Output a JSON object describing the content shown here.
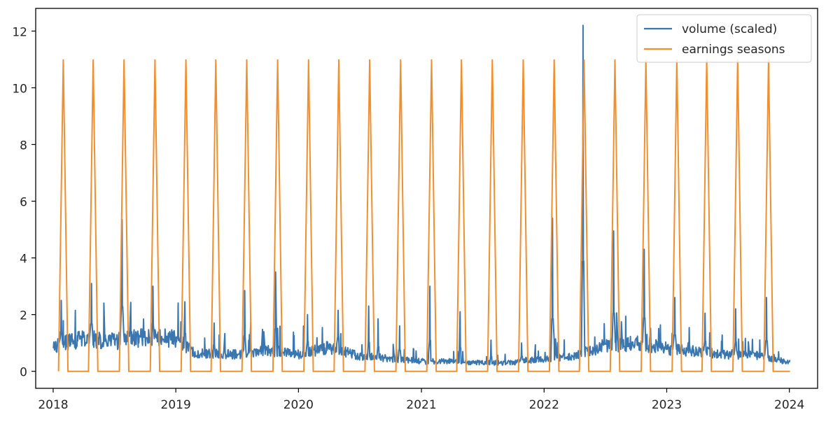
{
  "chart_data": {
    "type": "line",
    "title": "",
    "xlabel": "",
    "ylabel": "",
    "xlim": [
      "2017-11-10",
      "2024-03-25"
    ],
    "ylim": [
      -0.6,
      12.8
    ],
    "grid": false,
    "legend": {
      "position": "top-right"
    },
    "x_ticks": [
      "2018-01-01",
      "2019-01-01",
      "2020-01-01",
      "2021-01-01",
      "2022-01-01",
      "2023-01-01",
      "2024-01-01"
    ],
    "x_tick_labels": [
      "2018",
      "2019",
      "2020",
      "2021",
      "2022",
      "2023",
      "2024"
    ],
    "y_ticks": [
      0,
      2,
      4,
      6,
      8,
      10,
      12
    ],
    "y_tick_labels": [
      "0",
      "2",
      "4",
      "6",
      "8",
      "10",
      "12"
    ],
    "series": [
      {
        "name": "volume (scaled)",
        "color": "#3a76af",
        "baseline": [
          [
            "2018-01-01",
            0.9
          ],
          [
            "2018-04-01",
            1.15
          ],
          [
            "2018-07-01",
            1.05
          ],
          [
            "2018-10-01",
            1.2
          ],
          [
            "2019-01-01",
            1.15
          ],
          [
            "2019-03-01",
            0.65
          ],
          [
            "2019-07-01",
            0.6
          ],
          [
            "2019-10-01",
            0.75
          ],
          [
            "2020-01-01",
            0.6
          ],
          [
            "2020-04-01",
            0.85
          ],
          [
            "2020-07-01",
            0.55
          ],
          [
            "2020-10-01",
            0.45
          ],
          [
            "2021-01-01",
            0.35
          ],
          [
            "2021-04-01",
            0.35
          ],
          [
            "2021-07-01",
            0.3
          ],
          [
            "2021-10-01",
            0.3
          ],
          [
            "2022-01-01",
            0.45
          ],
          [
            "2022-04-01",
            0.55
          ],
          [
            "2022-07-01",
            0.9
          ],
          [
            "2022-10-01",
            1.0
          ],
          [
            "2023-01-01",
            0.8
          ],
          [
            "2023-04-01",
            0.7
          ],
          [
            "2023-07-01",
            0.6
          ],
          [
            "2023-10-01",
            0.55
          ],
          [
            "2024-01-03",
            0.3
          ]
        ],
        "spikes": [
          [
            "2018-01-25",
            2.5
          ],
          [
            "2018-04-25",
            3.1
          ],
          [
            "2018-07-25",
            5.35
          ],
          [
            "2018-10-25",
            3.0
          ],
          [
            "2019-01-28",
            2.45
          ],
          [
            "2019-04-25",
            1.7
          ],
          [
            "2019-07-25",
            2.85
          ],
          [
            "2019-10-25",
            3.5
          ],
          [
            "2020-01-28",
            2.0
          ],
          [
            "2020-04-28",
            2.15
          ],
          [
            "2020-07-28",
            2.3
          ],
          [
            "2020-08-25",
            1.85
          ],
          [
            "2020-10-28",
            1.6
          ],
          [
            "2021-01-26",
            3.0
          ],
          [
            "2021-04-26",
            2.1
          ],
          [
            "2021-07-27",
            1.1
          ],
          [
            "2021-10-26",
            1.0
          ],
          [
            "2022-01-26",
            5.4
          ],
          [
            "2022-04-27",
            12.2
          ],
          [
            "2022-07-27",
            4.95
          ],
          [
            "2022-10-26",
            4.3
          ],
          [
            "2023-01-25",
            2.6
          ],
          [
            "2023-04-25",
            2.05
          ],
          [
            "2023-07-25",
            2.2
          ],
          [
            "2023-10-25",
            2.6
          ]
        ]
      },
      {
        "name": "earnings seasons",
        "color": "#f08f2f",
        "shape": "triangular pulses",
        "peak_value": 11,
        "base_value": 0,
        "ramp_days": 14,
        "peaks": [
          "2018-01-31",
          "2018-04-30",
          "2018-07-31",
          "2018-10-31",
          "2019-01-31",
          "2019-04-30",
          "2019-07-31",
          "2019-10-31",
          "2020-01-31",
          "2020-04-30",
          "2020-07-31",
          "2020-10-31",
          "2021-01-31",
          "2021-04-30",
          "2021-07-31",
          "2021-10-31",
          "2022-01-31",
          "2022-04-30",
          "2022-07-31",
          "2022-10-31",
          "2023-01-31",
          "2023-04-30",
          "2023-07-31",
          "2023-10-31"
        ]
      }
    ]
  }
}
